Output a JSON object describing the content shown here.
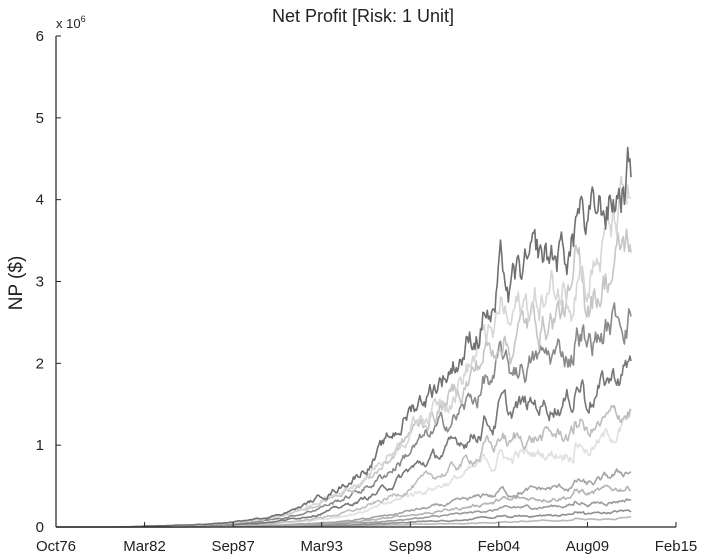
{
  "chart_data": {
    "type": "line",
    "title": "Net Profit [Risk: 1 Unit]",
    "xlabel": "",
    "ylabel": "NP ($)",
    "y_multiplier_label": "x 10",
    "y_multiplier_exponent": "6",
    "x_ticks": [
      "Oct76",
      "Mar82",
      "Sep87",
      "Mar93",
      "Sep98",
      "Feb04",
      "Aug09",
      "Feb15"
    ],
    "y_ticks": [
      "0",
      "1",
      "2",
      "3",
      "4",
      "5",
      "6"
    ],
    "xlim": [
      "Oct76",
      "Feb15"
    ],
    "ylim": [
      0,
      6
    ],
    "grid": false,
    "legend": "none",
    "x_anchor_years": [
      1976.75,
      1982.17,
      1987.67,
      1993.17,
      1998.67,
      2004.08,
      2009.58,
      2012.3
    ],
    "series": [
      {
        "color": "#707070",
        "values": [
          0,
          0.01,
          0.06,
          0.38,
          1.45,
          2.85,
          3.55,
          4.4
        ]
      },
      {
        "color": "#d6d6d6",
        "values": [
          0,
          0.01,
          0.05,
          0.32,
          1.25,
          2.5,
          3.1,
          4.0
        ]
      },
      {
        "color": "#c6c6c6",
        "values": [
          0,
          0.01,
          0.05,
          0.3,
          1.15,
          2.3,
          2.8,
          3.5
        ]
      },
      {
        "color": "#8a8a8a",
        "values": [
          0,
          0.01,
          0.04,
          0.25,
          0.95,
          1.9,
          2.2,
          2.7
        ]
      },
      {
        "color": "#777777",
        "values": [
          0,
          0.01,
          0.03,
          0.18,
          0.7,
          1.4,
          1.6,
          2.0
        ]
      },
      {
        "color": "#bdbdbd",
        "values": [
          0,
          0.005,
          0.02,
          0.12,
          0.5,
          1.05,
          1.15,
          1.45
        ]
      },
      {
        "color": "#e0e0e0",
        "values": [
          0,
          0.005,
          0.02,
          0.1,
          0.4,
          0.85,
          0.95,
          1.3
        ]
      },
      {
        "color": "#a3a3a3",
        "values": [
          0,
          0.003,
          0.01,
          0.05,
          0.2,
          0.42,
          0.5,
          0.7
        ]
      },
      {
        "color": "#b4b4b4",
        "values": [
          0,
          0.002,
          0.008,
          0.04,
          0.15,
          0.32,
          0.4,
          0.5
        ]
      },
      {
        "color": "#9c9c9c",
        "values": [
          0,
          0.002,
          0.006,
          0.03,
          0.1,
          0.22,
          0.28,
          0.35
        ]
      },
      {
        "color": "#8e8e8e",
        "values": [
          0,
          0.001,
          0.004,
          0.02,
          0.06,
          0.12,
          0.16,
          0.2
        ]
      },
      {
        "color": "#b8b8b8",
        "values": [
          0,
          0.001,
          0.003,
          0.01,
          0.03,
          0.06,
          0.09,
          0.12
        ]
      }
    ]
  }
}
